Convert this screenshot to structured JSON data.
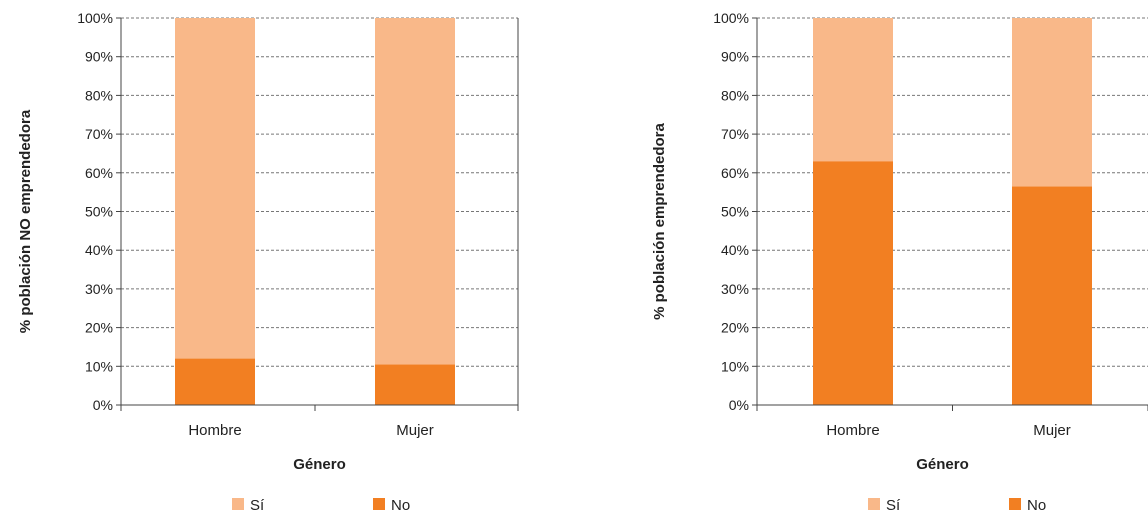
{
  "colors": {
    "si": "#f9b889",
    "no": "#f27f22",
    "grid": "#777777",
    "axis": "#444444"
  },
  "chart_data": [
    {
      "type": "bar",
      "stacked": true,
      "ylabel": "% población NO emprendedora",
      "xlabel": "Género",
      "categories": [
        "Hombre",
        "Mujer"
      ],
      "ylim": [
        0,
        100
      ],
      "yticks": [
        "0%",
        "10%",
        "20%",
        "30%",
        "40%",
        "50%",
        "60%",
        "70%",
        "80%",
        "90%",
        "100%"
      ],
      "grid": true,
      "legend_position": "bottom",
      "series": [
        {
          "name": "No",
          "values": [
            12,
            10.5
          ]
        },
        {
          "name": "Sí",
          "values": [
            88,
            89.5
          ]
        }
      ],
      "legend": [
        "Sí",
        "No"
      ]
    },
    {
      "type": "bar",
      "stacked": true,
      "ylabel": "% población emprendedora",
      "xlabel": "Género",
      "categories": [
        "Hombre",
        "Mujer"
      ],
      "ylim": [
        0,
        100
      ],
      "yticks": [
        "0%",
        "10%",
        "20%",
        "30%",
        "40%",
        "50%",
        "60%",
        "70%",
        "80%",
        "90%",
        "100%"
      ],
      "grid": true,
      "legend_position": "bottom",
      "series": [
        {
          "name": "No",
          "values": [
            63,
            56.5
          ]
        },
        {
          "name": "Sí",
          "values": [
            37,
            43.5
          ]
        }
      ],
      "legend": [
        "Sí",
        "No"
      ]
    }
  ]
}
